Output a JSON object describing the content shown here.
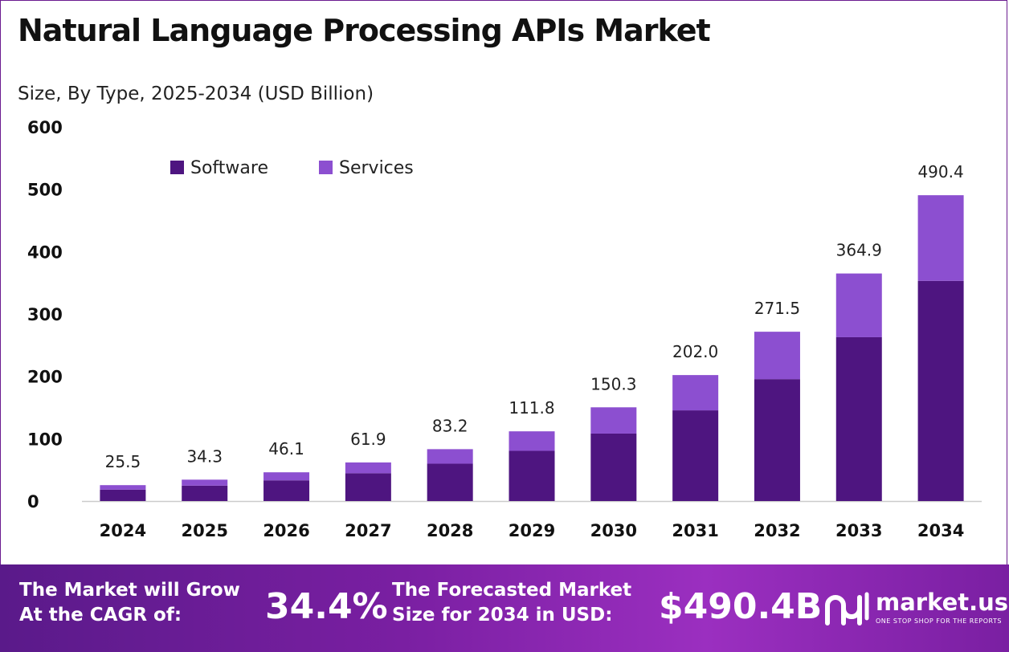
{
  "title": "Natural Language Processing APIs Market",
  "subtitle": "Size, By Type, 2025-2034 (USD Billion)",
  "colors": {
    "software": "#4e1580",
    "services": "#8c4fd0",
    "footer_bg": "#7a1fa2",
    "axis": "#cccccc"
  },
  "chart_data": {
    "type": "bar",
    "stacked": true,
    "categories": [
      "2024",
      "2025",
      "2026",
      "2027",
      "2028",
      "2029",
      "2030",
      "2031",
      "2032",
      "2033",
      "2034"
    ],
    "series": [
      {
        "name": "Software",
        "values": [
          18.3,
          24.7,
          33.2,
          44.6,
          59.9,
          80.5,
          108.2,
          145.4,
          195.5,
          262.7,
          353.1
        ]
      },
      {
        "name": "Services",
        "values": [
          7.2,
          9.6,
          12.9,
          17.3,
          23.3,
          31.3,
          42.1,
          56.6,
          76.0,
          102.2,
          137.3
        ]
      }
    ],
    "totals": [
      "25.5",
      "34.3",
      "46.1",
      "61.9",
      "83.2",
      "111.8",
      "150.3",
      "202.0",
      "271.5",
      "364.9",
      "490.4"
    ],
    "y_ticks": [
      "0",
      "100",
      "200",
      "300",
      "400",
      "500",
      "600"
    ],
    "ylim": [
      0,
      600
    ],
    "xlabel": "",
    "ylabel": "",
    "legend_position": "top-left",
    "grid": false
  },
  "footer": {
    "cagr_label_line1": "The Market will Grow",
    "cagr_label_line2": "At the CAGR of:",
    "cagr_value": "34.4%",
    "forecast_label_line1": "The Forecasted Market",
    "forecast_label_line2": "Size for 2034 in USD:",
    "forecast_value": "$490.4B",
    "brand_name": "market.us",
    "brand_tagline": "ONE STOP SHOP FOR THE REPORTS"
  }
}
